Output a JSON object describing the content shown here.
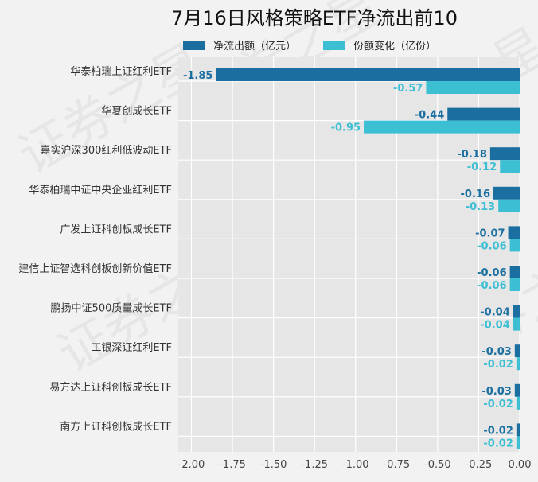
{
  "chart_data": {
    "type": "bar",
    "orientation": "horizontal",
    "title": "7月16日风格策略ETF净流出前10",
    "categories": [
      "华泰柏瑞上证红利ETF",
      "华夏创成长ETF",
      "嘉实沪深300红利低波动ETF",
      "华泰柏瑞中证中央企业红利ETF",
      "广发上证科创板成长ETF",
      "建信上证智选科创板创新价值ETF",
      "鹏扬中证500质量成长ETF",
      "工银深证红利ETF",
      "易方达上证科创板成长ETF",
      "南方上证科创板成长ETF"
    ],
    "series": [
      {
        "name": "净流出额（亿元）",
        "color": "#1a6fa0",
        "values": [
          -1.85,
          -0.44,
          -0.18,
          -0.16,
          -0.07,
          -0.06,
          -0.04,
          -0.03,
          -0.03,
          -0.02
        ],
        "labels": [
          "-1.85",
          "-0.44",
          "-0.18",
          "-0.16",
          "-0.07",
          "-0.06",
          "-0.04",
          "-0.03",
          "-0.03",
          "-0.02"
        ]
      },
      {
        "name": "份额变化（亿份）",
        "color": "#3dbfd3",
        "values": [
          -0.57,
          -0.95,
          -0.12,
          -0.13,
          -0.06,
          -0.06,
          -0.04,
          -0.02,
          -0.02,
          -0.02
        ],
        "labels": [
          "-0.57",
          "-0.95",
          "-0.12",
          "-0.13",
          "-0.06",
          "-0.06",
          "-0.04",
          "-0.02",
          "-0.02",
          "-0.02"
        ]
      }
    ],
    "x_ticks": [
      -2.0,
      -1.75,
      -1.5,
      -1.25,
      -1.0,
      -0.75,
      -0.5,
      -0.25,
      0.0
    ],
    "x_tick_labels": [
      "-2.00",
      "-1.75",
      "-1.50",
      "-1.25",
      "-1.00",
      "-0.75",
      "-0.50",
      "-0.25",
      "0.00"
    ],
    "xlim": [
      -2.08,
      0.0
    ],
    "grid": true,
    "legend_position": "top-center",
    "plot_background": "#e6e6e6",
    "watermark_text": "证券之星"
  }
}
